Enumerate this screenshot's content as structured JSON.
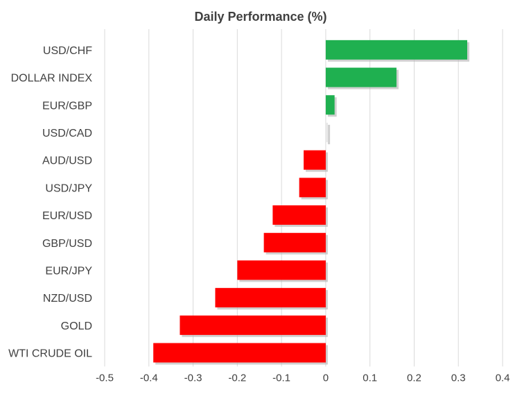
{
  "chart_data": {
    "type": "bar",
    "orientation": "horizontal",
    "title": "Daily Performance  (%)",
    "xlabel": "",
    "ylabel": "",
    "categories": [
      "USD/CHF",
      "DOLLAR INDEX",
      "EUR/GBP",
      "USD/CAD",
      "AUD/USD",
      "USD/JPY",
      "EUR/USD",
      "GBP/USD",
      "EUR/JPY",
      "NZD/USD",
      "GOLD",
      "WTI CRUDE OIL"
    ],
    "values": [
      0.32,
      0.16,
      0.02,
      0.005,
      -0.05,
      -0.06,
      -0.12,
      -0.14,
      -0.2,
      -0.25,
      -0.33,
      -0.39
    ],
    "xlim": [
      -0.5,
      0.4
    ],
    "ticks": [
      "-0.5",
      "-0.4",
      "-0.3",
      "-0.2",
      "-0.1",
      "0",
      "0.1",
      "0.2",
      "0.3",
      "0.4"
    ],
    "grid": true,
    "legend": "none",
    "colors": {
      "positive": "#1fb050",
      "negative": "#ff0000",
      "grid": "#d9d9d9",
      "text": "#404040",
      "bar_shadow": "#b0b0b0"
    }
  }
}
